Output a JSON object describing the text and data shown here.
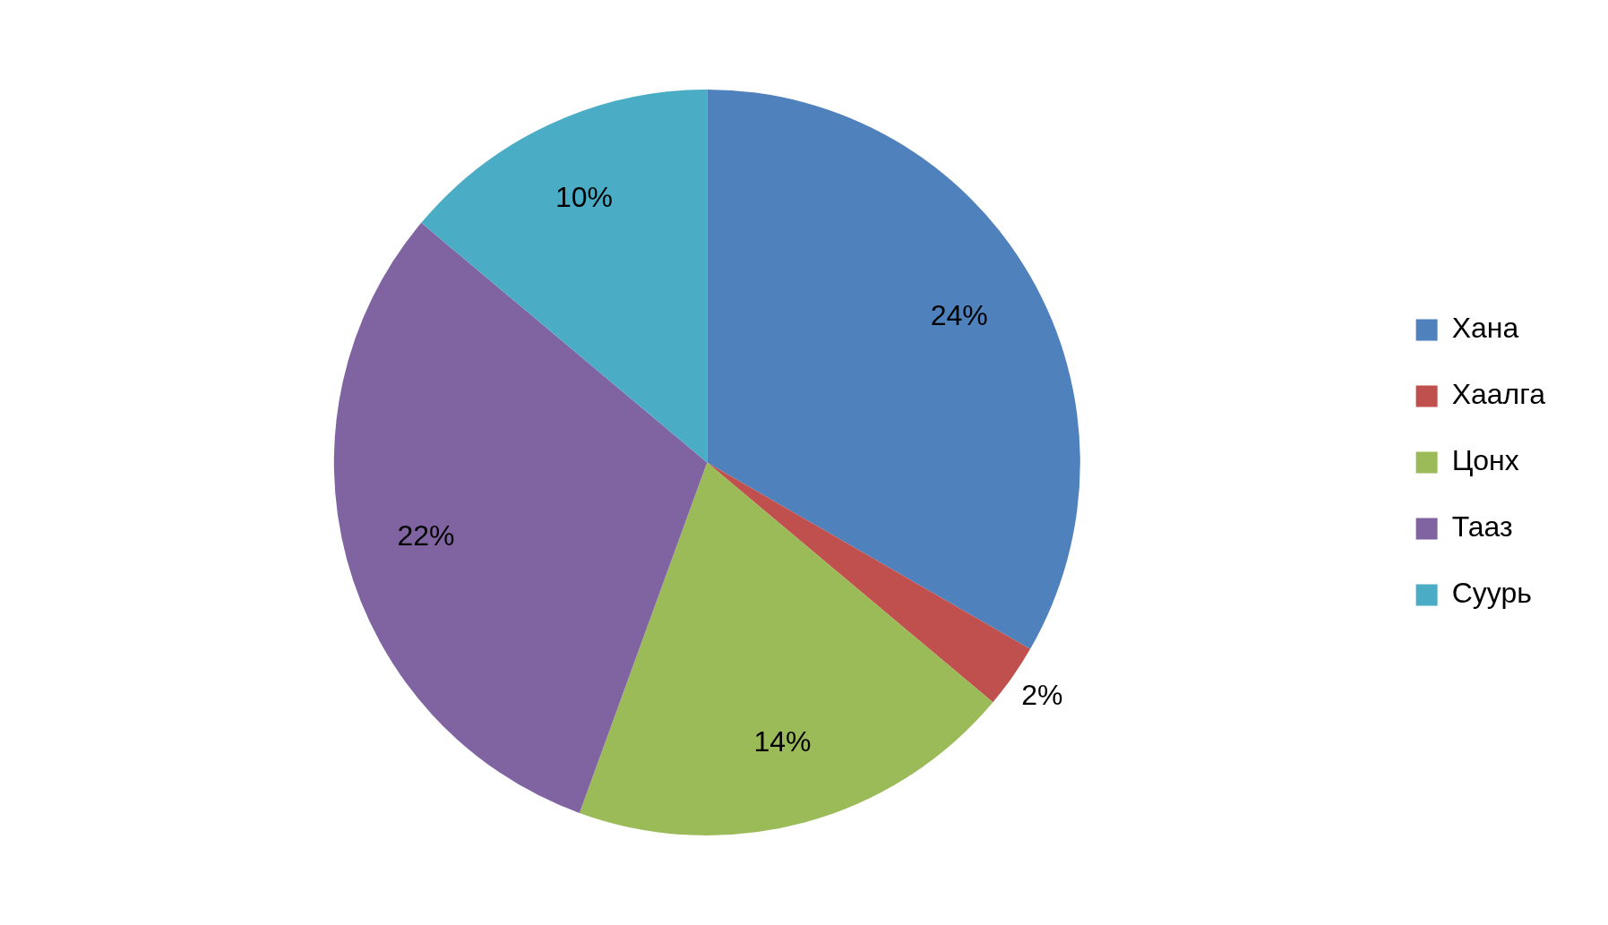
{
  "chart_data": {
    "type": "pie",
    "categories": [
      "Хана",
      "Хаалга",
      "Цонх",
      "Тааз",
      "Суурь"
    ],
    "values": [
      24,
      2,
      14,
      22,
      10
    ],
    "colors": [
      "#4f81bd",
      "#c0504d",
      "#9bbb59",
      "#8064a2",
      "#4bacc6"
    ],
    "value_labels": [
      "24%",
      "2%",
      "14%",
      "22%",
      "10%"
    ],
    "legend": "right"
  }
}
